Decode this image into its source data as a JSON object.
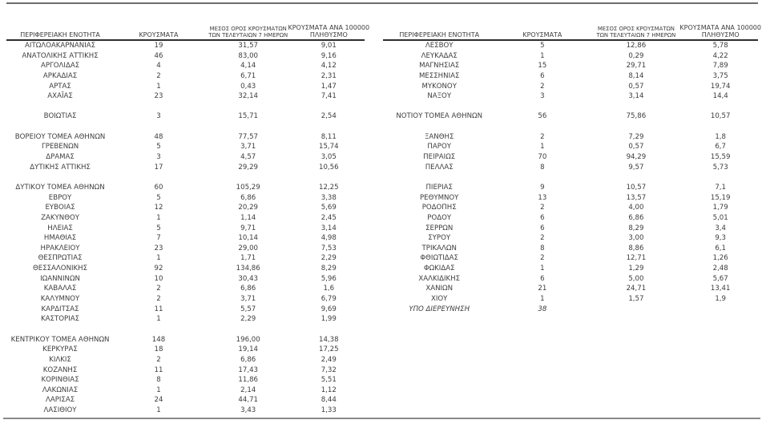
{
  "colors": {
    "background": "#ffffff",
    "text": "#3d3d3d",
    "top_rule": "#6d6d6d",
    "bottom_rule": "#8a8a8a",
    "header_underline": "#2e2e2e"
  },
  "table": {
    "headers": [
      {
        "lines": [
          "ΠΕΡΙΦΕΡΕΙΑΚΗ ΕΝΟΤΗΤΑ"
        ],
        "small": false
      },
      {
        "lines": [
          "ΚΡΟΥΣΜΑΤΑ"
        ],
        "small": false
      },
      {
        "lines": [
          "ΜΕΣΟΣ ΟΡΟΣ ΚΡΟΥΣΜΑΤΩΝ",
          "ΤΩΝ ΤΕΛΕΥΤΑΙΩΝ 7 ΗΜΕΡΩΝ"
        ],
        "small": true
      },
      {
        "lines": [
          "ΚΡΟΥΣΜΑΤΑ ΑΝΑ 100000",
          "ΠΛΗΘΥΣΜΟ"
        ],
        "small": false
      }
    ],
    "left_rows": [
      {
        "name": "ΑΙΤΩΛΟΑΚΑΡΝΑΝΙΑΣ",
        "cases": "19",
        "avg7": "31,57",
        "per100k": "9,01"
      },
      {
        "name": "ΑΝΑΤΟΛΙΚΗΣ ΑΤΤΙΚΗΣ",
        "cases": "46",
        "avg7": "83,00",
        "per100k": "9,16"
      },
      {
        "name": "ΑΡΓΟΛΙΔΑΣ",
        "cases": "4",
        "avg7": "4,14",
        "per100k": "4,12"
      },
      {
        "name": "ΑΡΚΑΔΙΑΣ",
        "cases": "2",
        "avg7": "6,71",
        "per100k": "2,31"
      },
      {
        "name": "ΑΡΤΑΣ",
        "cases": "1",
        "avg7": "0,43",
        "per100k": "1,47"
      },
      {
        "name": "ΑΧΑΪΑΣ",
        "cases": "23",
        "avg7": "32,14",
        "per100k": "7,41"
      },
      {
        "spacer": true
      },
      {
        "name": "ΒΟΙΩΤΙΑΣ",
        "cases": "3",
        "avg7": "15,71",
        "per100k": "2,54"
      },
      {
        "spacer": true
      },
      {
        "name": "ΒΟΡΕΙΟΥ ΤΟΜΕΑ ΑΘΗΝΩΝ",
        "cases": "48",
        "avg7": "77,57",
        "per100k": "8,11"
      },
      {
        "name": "ΓΡΕΒΕΝΩΝ",
        "cases": "5",
        "avg7": "3,71",
        "per100k": "15,74"
      },
      {
        "name": "ΔΡΑΜΑΣ",
        "cases": "3",
        "avg7": "4,57",
        "per100k": "3,05"
      },
      {
        "name": "ΔΥΤΙΚΗΣ ΑΤΤΙΚΗΣ",
        "cases": "17",
        "avg7": "29,29",
        "per100k": "10,56"
      },
      {
        "spacer": true
      },
      {
        "name": "ΔΥΤΙΚΟΥ ΤΟΜΕΑ ΑΘΗΝΩΝ",
        "cases": "60",
        "avg7": "105,29",
        "per100k": "12,25"
      },
      {
        "name": "ΕΒΡΟΥ",
        "cases": "5",
        "avg7": "6,86",
        "per100k": "3,38"
      },
      {
        "name": "ΕΥΒΟΙΑΣ",
        "cases": "12",
        "avg7": "20,29",
        "per100k": "5,69"
      },
      {
        "name": "ΖΑΚΥΝΘΟΥ",
        "cases": "1",
        "avg7": "1,14",
        "per100k": "2,45"
      },
      {
        "name": "ΗΛΕΙΑΣ",
        "cases": "5",
        "avg7": "9,71",
        "per100k": "3,14"
      },
      {
        "name": "ΗΜΑΘΙΑΣ",
        "cases": "7",
        "avg7": "10,14",
        "per100k": "4,98"
      },
      {
        "name": "ΗΡΑΚΛΕΙΟΥ",
        "cases": "23",
        "avg7": "29,00",
        "per100k": "7,53"
      },
      {
        "name": "ΘΕΣΠΡΩΤΙΑΣ",
        "cases": "1",
        "avg7": "1,71",
        "per100k": "2,29"
      },
      {
        "name": "ΘΕΣΣΑΛΟΝΙΚΗΣ",
        "cases": "92",
        "avg7": "134,86",
        "per100k": "8,29"
      },
      {
        "name": "ΙΩΑΝΝΙΝΩΝ",
        "cases": "10",
        "avg7": "30,43",
        "per100k": "5,96"
      },
      {
        "name": "ΚΑΒΑΛΑΣ",
        "cases": "2",
        "avg7": "6,86",
        "per100k": "1,6"
      },
      {
        "name": "ΚΑΛΥΜΝΟΥ",
        "cases": "2",
        "avg7": "3,71",
        "per100k": "6,79"
      },
      {
        "name": "ΚΑΡΔΙΤΣΑΣ",
        "cases": "11",
        "avg7": "5,57",
        "per100k": "9,69"
      },
      {
        "name": "ΚΑΣΤΟΡΙΑΣ",
        "cases": "1",
        "avg7": "2,29",
        "per100k": "1,99"
      },
      {
        "spacer": true
      },
      {
        "name": "ΚΕΝΤΡΙΚΟΥ ΤΟΜΕΑ ΑΘΗΝΩΝ",
        "cases": "148",
        "avg7": "196,00",
        "per100k": "14,38"
      },
      {
        "name": "ΚΕΡΚΥΡΑΣ",
        "cases": "18",
        "avg7": "19,14",
        "per100k": "17,25"
      },
      {
        "name": "ΚΙΛΚΙΣ",
        "cases": "2",
        "avg7": "6,86",
        "per100k": "2,49"
      },
      {
        "name": "ΚΟΖΑΝΗΣ",
        "cases": "11",
        "avg7": "17,43",
        "per100k": "7,32"
      },
      {
        "name": "ΚΟΡΙΝΘΙΑΣ",
        "cases": "8",
        "avg7": "11,86",
        "per100k": "5,51"
      },
      {
        "name": "ΛΑΚΩΝΙΑΣ",
        "cases": "1",
        "avg7": "2,14",
        "per100k": "1,12"
      },
      {
        "name": "ΛΑΡΙΣΑΣ",
        "cases": "24",
        "avg7": "44,71",
        "per100k": "8,44"
      },
      {
        "name": "ΛΑΣΙΘΙΟΥ",
        "cases": "1",
        "avg7": "3,43",
        "per100k": "1,33"
      }
    ],
    "right_rows": [
      {
        "name": "ΛΕΣΒΟΥ",
        "cases": "5",
        "avg7": "12,86",
        "per100k": "5,78"
      },
      {
        "name": "ΛΕΥΚΑΔΑΣ",
        "cases": "1",
        "avg7": "0,29",
        "per100k": "4,22"
      },
      {
        "name": "ΜΑΓΝΗΣΙΑΣ",
        "cases": "15",
        "avg7": "29,71",
        "per100k": "7,89"
      },
      {
        "name": "ΜΕΣΣΗΝΙΑΣ",
        "cases": "6",
        "avg7": "8,14",
        "per100k": "3,75"
      },
      {
        "name": "ΜΥΚΟΝΟΥ",
        "cases": "2",
        "avg7": "0,57",
        "per100k": "19,74"
      },
      {
        "name": "ΝΑΞΟΥ",
        "cases": "3",
        "avg7": "3,14",
        "per100k": "14,4"
      },
      {
        "spacer": true
      },
      {
        "name": "ΝΟΤΙΟΥ ΤΟΜΕΑ ΑΘΗΝΩΝ",
        "cases": "56",
        "avg7": "75,86",
        "per100k": "10,57"
      },
      {
        "spacer": true
      },
      {
        "name": "ΞΑΝΘΗΣ",
        "cases": "2",
        "avg7": "7,29",
        "per100k": "1,8"
      },
      {
        "name": "ΠΑΡΟΥ",
        "cases": "1",
        "avg7": "0,57",
        "per100k": "6,7"
      },
      {
        "name": "ΠΕΙΡΑΙΩΣ",
        "cases": "70",
        "avg7": "94,29",
        "per100k": "15,59"
      },
      {
        "name": "ΠΕΛΛΑΣ",
        "cases": "8",
        "avg7": "9,57",
        "per100k": "5,73"
      },
      {
        "spacer": true
      },
      {
        "name": "ΠΙΕΡΙΑΣ",
        "cases": "9",
        "avg7": "10,57",
        "per100k": "7,1"
      },
      {
        "name": "ΡΕΘΥΜΝΟΥ",
        "cases": "13",
        "avg7": "13,57",
        "per100k": "15,19"
      },
      {
        "name": "ΡΟΔΟΠΗΣ",
        "cases": "2",
        "avg7": "4,00",
        "per100k": "1,79"
      },
      {
        "name": "ΡΟΔΟΥ",
        "cases": "6",
        "avg7": "6,86",
        "per100k": "5,01"
      },
      {
        "name": "ΣΕΡΡΩΝ",
        "cases": "6",
        "avg7": "8,29",
        "per100k": "3,4"
      },
      {
        "name": "ΣΥΡΟΥ",
        "cases": "2",
        "avg7": "3,00",
        "per100k": "9,3"
      },
      {
        "name": "ΤΡΙΚΑΛΩΝ",
        "cases": "8",
        "avg7": "8,86",
        "per100k": "6,1"
      },
      {
        "name": "ΦΘΙΩΤΙΔΑΣ",
        "cases": "2",
        "avg7": "12,71",
        "per100k": "1,26"
      },
      {
        "name": "ΦΩΚΙΔΑΣ",
        "cases": "1",
        "avg7": "1,29",
        "per100k": "2,48"
      },
      {
        "name": "ΧΑΛΚΙΔΙΚΗΣ",
        "cases": "6",
        "avg7": "5,00",
        "per100k": "5,67"
      },
      {
        "name": "ΧΑΝΙΩΝ",
        "cases": "21",
        "avg7": "24,71",
        "per100k": "13,41"
      },
      {
        "name": "ΧΙΟΥ",
        "cases": "1",
        "avg7": "1,57",
        "per100k": "1,9"
      },
      {
        "name": "ΥΠΟ ΔΙΕΡΕΥΝΗΣΗ",
        "cases": "38",
        "avg7": "",
        "per100k": "",
        "style": "italic"
      }
    ]
  }
}
